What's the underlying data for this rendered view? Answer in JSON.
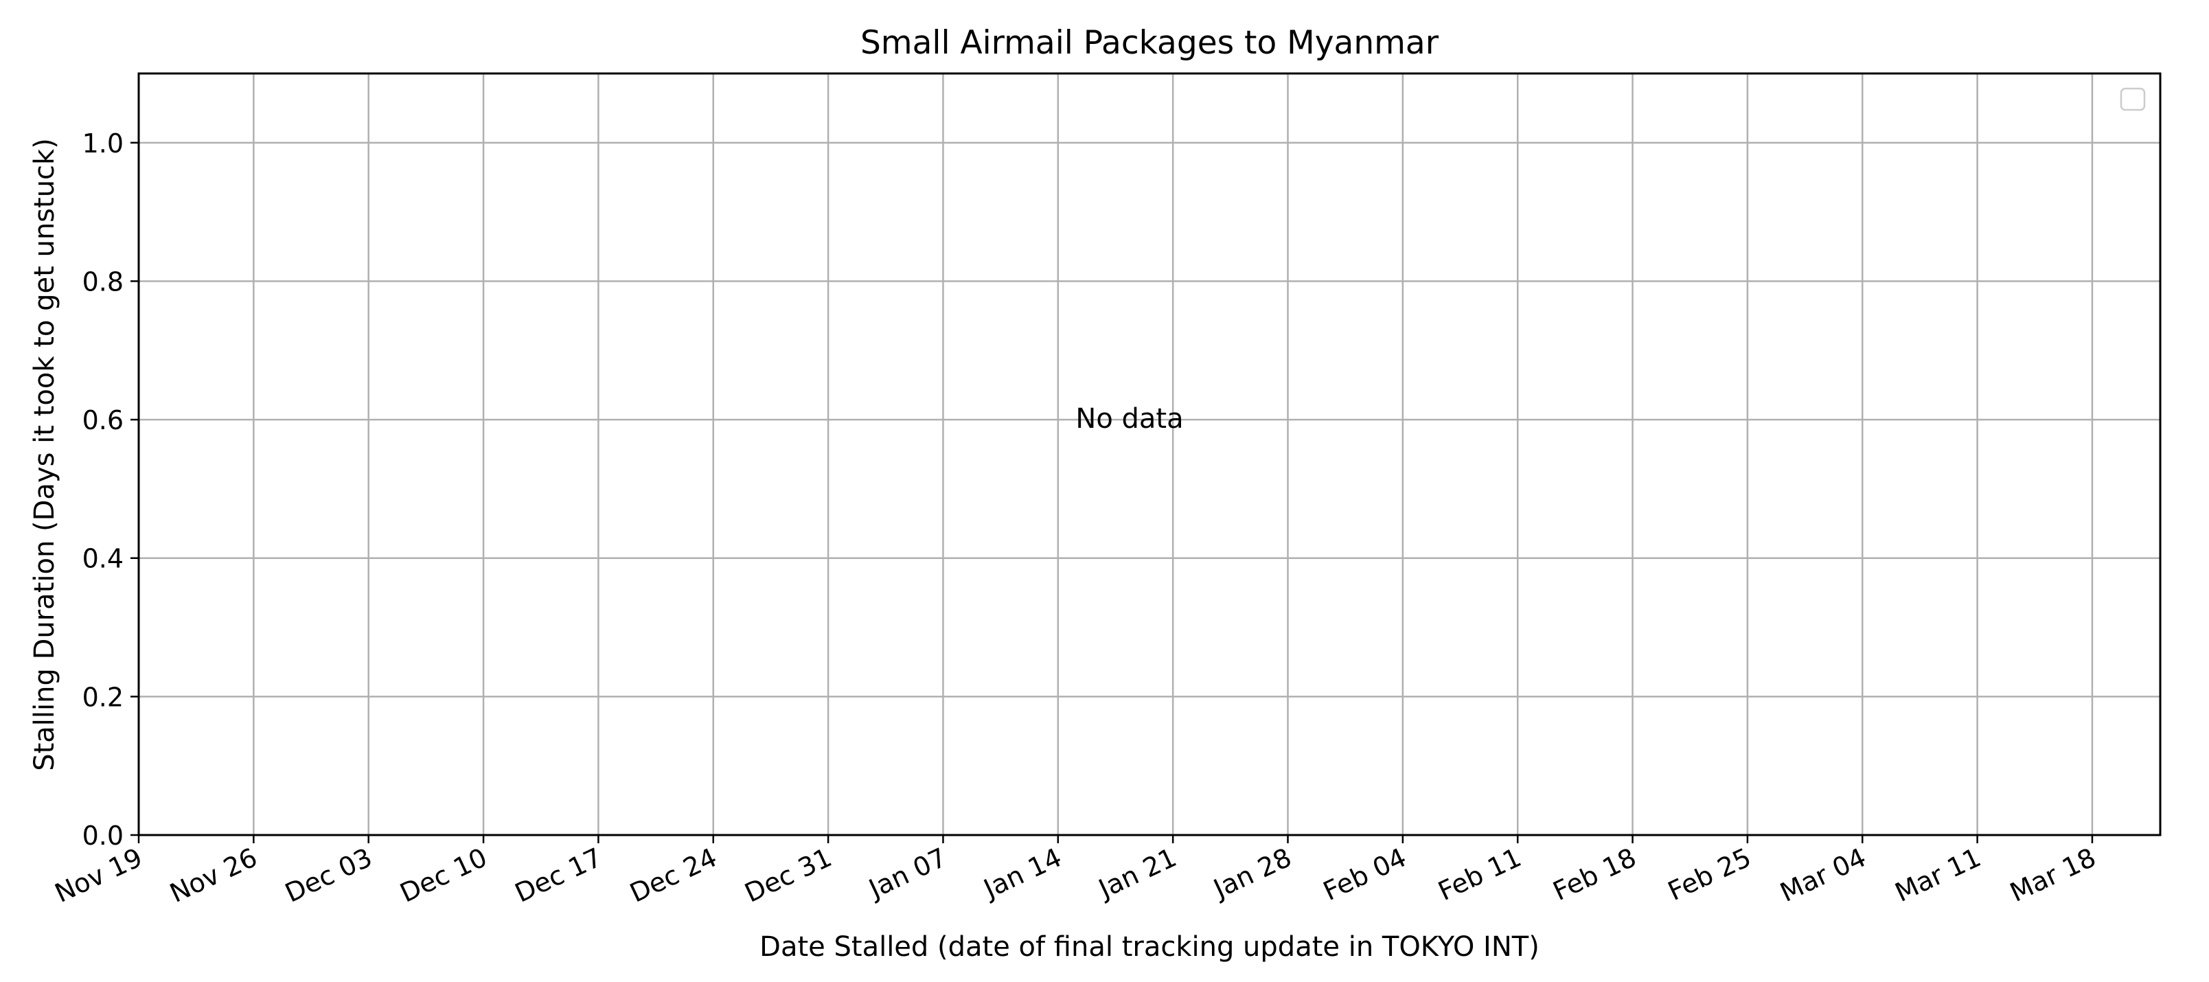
{
  "chart_data": {
    "type": "scatter",
    "title": "Small Airmail Packages to Myanmar",
    "xlabel": "Date Stalled (date of final tracking update in TOKYO INT)",
    "ylabel": "Stalling Duration (Days it took to get unstuck)",
    "x_ticks": [
      "Nov 19",
      "Nov 26",
      "Dec 03",
      "Dec 10",
      "Dec 17",
      "Dec 24",
      "Dec 31",
      "Jan 07",
      "Jan 14",
      "Jan 21",
      "Jan 28",
      "Feb 04",
      "Feb 11",
      "Feb 18",
      "Feb 25",
      "Mar 04",
      "Mar 11",
      "Mar 18"
    ],
    "y_ticks": [
      "0.0",
      "0.2",
      "0.4",
      "0.6",
      "0.8",
      "1.0"
    ],
    "ylim": [
      0,
      1.1
    ],
    "grid": true,
    "legend": {
      "position": "top-right",
      "entries": []
    },
    "annotation": "No data",
    "series": []
  }
}
